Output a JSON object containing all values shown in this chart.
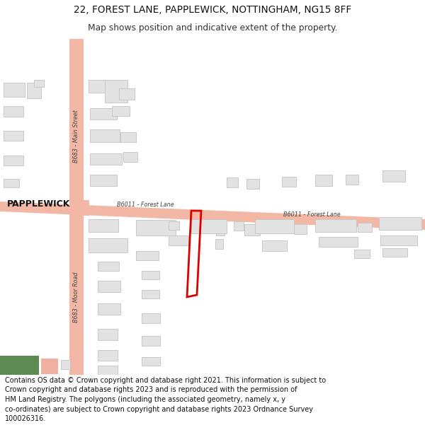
{
  "title_line1": "22, FOREST LANE, PAPPLEWICK, NOTTINGHAM, NG15 8FF",
  "title_line2": "Map shows position and indicative extent of the property.",
  "footer_text": "Contains OS data © Crown copyright and database right 2021. This information is subject to Crown copyright and database rights 2023 and is reproduced with the permission of HM Land Registry. The polygons (including the associated geometry, namely x, y co-ordinates) are subject to Crown copyright and database rights 2023 Ordnance Survey 100026316.",
  "map_bg": "#f8f8f8",
  "road_color": "#f2b8a5",
  "building_fill": "#e2e2e2",
  "building_edge": "#c8c8c8",
  "plot_stroke": "#dd0000",
  "green_fill": "#5c8a50",
  "salmon_fill": "#f0b0a0",
  "fig_bg": "#ffffff",
  "title_fontsize": 10,
  "label_color": "#444444",
  "footer_fontsize": 7.3
}
